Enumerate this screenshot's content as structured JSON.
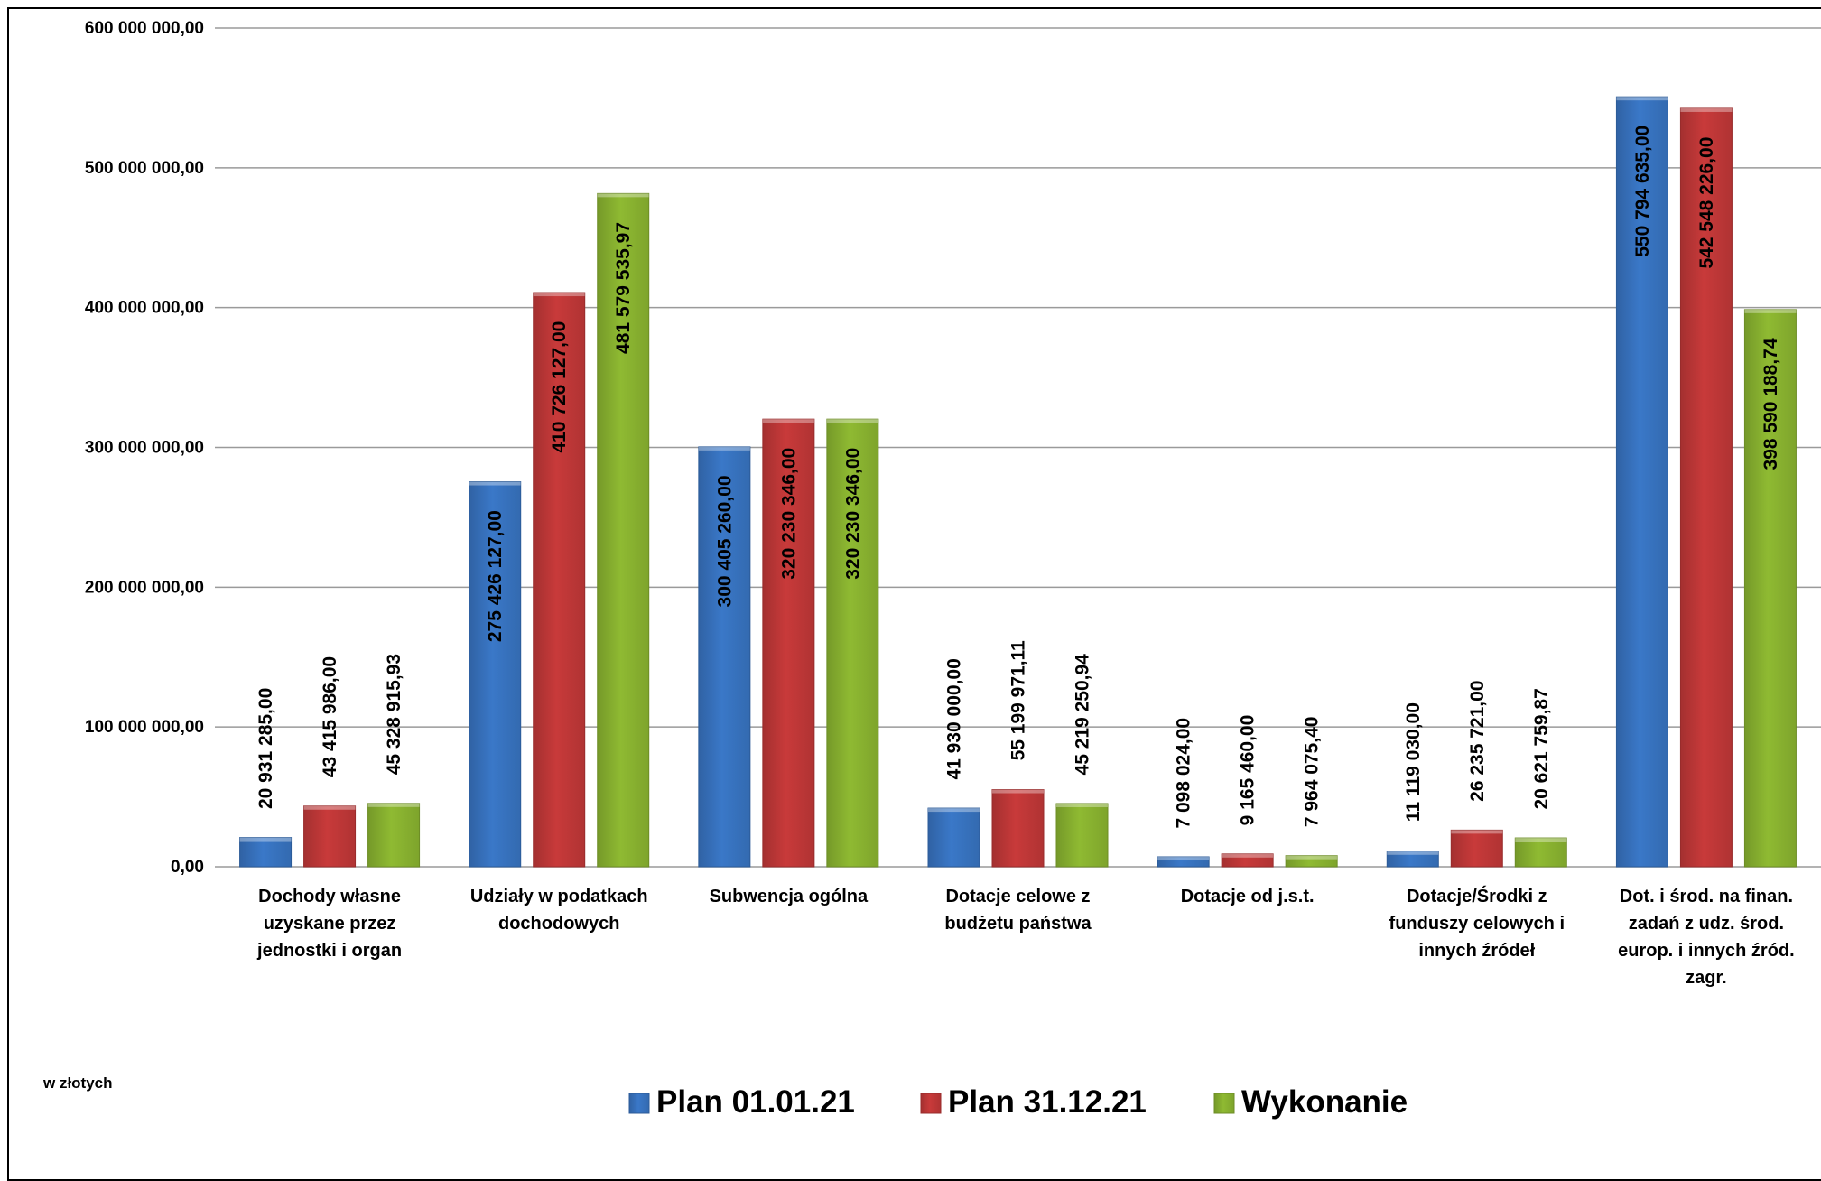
{
  "chart_data": {
    "type": "bar",
    "categories": [
      "Dochody własne uzyskane przez jednostki  i organ",
      "Udziały w podatkach dochodowych",
      "Subwencja ogólna",
      "Dotacje celowe z budżetu państwa",
      "Dotacje od j.s.t.",
      "Dotacje/Środki z funduszy celowych i innych źródeł",
      "Dot. i śród. na finan. zadań z udz. środ. europ. i innych źród. zagr."
    ],
    "category_lines": [
      [
        "Dochody własne",
        "uzyskane przez",
        "jednostki  i organ"
      ],
      [
        "Udziały w podatkach",
        "dochodowych"
      ],
      [
        "Subwencja ogólna"
      ],
      [
        "Dotacje celowe z",
        "budżetu państwa"
      ],
      [
        "Dotacje od j.s.t."
      ],
      [
        "Dotacje/Środki z",
        "funduszy celowych i",
        "innych źródeł"
      ],
      [
        "Dot. i środ. na finan.",
        "zadań z udz. środ.",
        "europ. i innych źród.",
        "zagr."
      ]
    ],
    "series": [
      {
        "name": "Plan 01.01.21",
        "color": "#3a78c8",
        "values": [
          20931285.0,
          275426127.0,
          300405260.0,
          41930000.0,
          7098024.0,
          11119030.0,
          550794635.0
        ],
        "labels": [
          "20 931 285,00",
          "275 426 127,00",
          "300 405 260,00",
          "41 930 000,00",
          "7 098 024,00",
          "11 119 030,00",
          "550 794 635,00"
        ]
      },
      {
        "name": "Plan 31.12.21",
        "color": "#c83a3a",
        "values": [
          43415986.0,
          410726127.0,
          320230346.0,
          55199971.11,
          9165460.0,
          26235721.0,
          542548226.0
        ],
        "labels": [
          "43 415 986,00",
          "410 726 127,00",
          "320 230 346,00",
          "55 199 971,11",
          "9 165 460,00",
          "26 235 721,00",
          "542 548 226,00"
        ]
      },
      {
        "name": "Wykonanie",
        "color": "#8fba32",
        "values": [
          45328915.93,
          481579535.97,
          320230346.0,
          45219250.94,
          7964075.4,
          20621759.87,
          398590188.74
        ],
        "labels": [
          "45 328 915,93",
          "481 579 535,97",
          "320 230 346,00",
          "45 219 250,94",
          "7 964 075,40",
          "20 621 759,87",
          "398 590 188,74"
        ]
      }
    ],
    "yticks": [
      0,
      100000000,
      200000000,
      300000000,
      400000000,
      500000000,
      600000000
    ],
    "ytick_labels": [
      "0,00",
      "100 000 000,00",
      "200 000 000,00",
      "300 000 000,00",
      "400 000 000,00",
      "500 000 000,00",
      "600 000 000,00"
    ],
    "ylim": [
      0,
      600000000
    ],
    "grid": true,
    "legend_position": "bottom",
    "unit_note": "w złotych",
    "title": "",
    "xlabel": "",
    "ylabel": ""
  }
}
